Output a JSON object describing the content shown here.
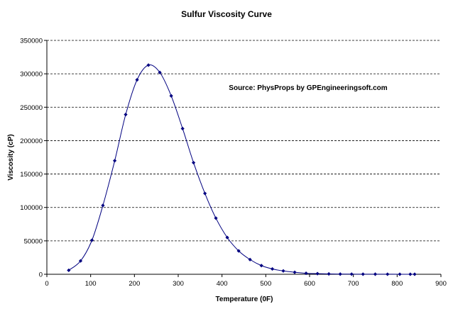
{
  "chart_data": {
    "type": "scatter",
    "title": "Sulfur Viscosity Curve",
    "xlabel": "Temperature (0F)",
    "ylabel": "Viscosity (cP)",
    "annotation": "Source:  PhysProps by GPEngineeringsoft.com",
    "xlim": [
      0,
      900
    ],
    "ylim": [
      0,
      350000
    ],
    "x_ticks": [
      0,
      100,
      200,
      300,
      400,
      500,
      600,
      700,
      800,
      900
    ],
    "y_ticks": [
      0,
      50000,
      100000,
      150000,
      200000,
      250000,
      300000,
      350000
    ],
    "grid": "horizontal dashed",
    "marker": "diamond",
    "series_color": "#000080",
    "series": [
      {
        "x": [
          50,
          77,
          103,
          128,
          155,
          180,
          206,
          232,
          258,
          284,
          310,
          335,
          361,
          386,
          412,
          438,
          464,
          490,
          515,
          540,
          566,
          592,
          618,
          644,
          670,
          696,
          722,
          750,
          778,
          806,
          830,
          840
        ],
        "y": [
          6000,
          20000,
          51000,
          103000,
          170000,
          239000,
          291000,
          313000,
          302000,
          267000,
          218000,
          167000,
          121000,
          84000,
          55000,
          35000,
          22000,
          13000,
          8000,
          5000,
          3000,
          1500,
          900,
          500,
          300,
          200,
          150,
          100,
          80,
          60,
          50,
          40
        ]
      }
    ]
  }
}
